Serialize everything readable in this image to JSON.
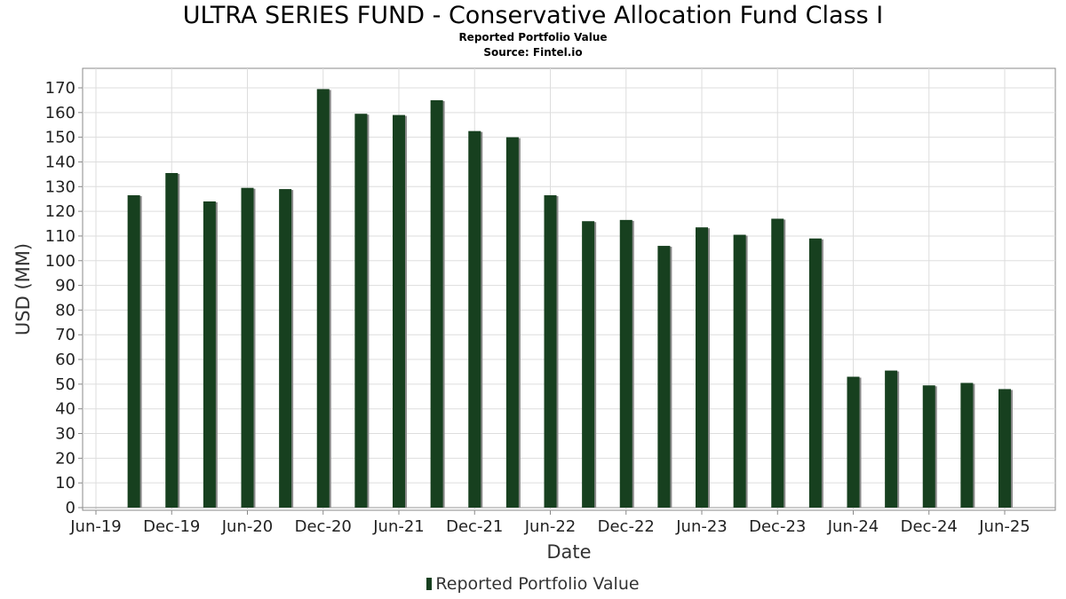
{
  "header": {
    "title": "ULTRA SERIES FUND - Conservative Allocation Fund Class I",
    "subtitle": "Reported Portfolio Value",
    "source": "Source: Fintel.io"
  },
  "legend": {
    "label": "Reported Portfolio Value"
  },
  "colors": {
    "bar": "#17401f",
    "bar_shadow": "#8a8a8a",
    "grid": "#dddddd",
    "plot_border": "#888888"
  },
  "chart_data": {
    "type": "bar",
    "title": "ULTRA SERIES FUND - Conservative Allocation Fund Class I",
    "subtitle": "Reported Portfolio Value",
    "xlabel": "Date",
    "ylabel": "USD (MM)",
    "ylim": [
      0,
      175
    ],
    "yticks": [
      0,
      10,
      20,
      30,
      40,
      50,
      60,
      70,
      80,
      90,
      100,
      110,
      120,
      130,
      140,
      150,
      160,
      170
    ],
    "xticks": [
      "Jun-19",
      "Dec-19",
      "Jun-20",
      "Dec-20",
      "Jun-21",
      "Dec-21",
      "Jun-22",
      "Dec-22",
      "Jun-23",
      "Dec-23",
      "Jun-24",
      "Dec-24",
      "Jun-25"
    ],
    "grid": true,
    "legend_position": "bottom",
    "series": [
      {
        "name": "Reported Portfolio Value",
        "x": [
          "2019-09",
          "2019-12",
          "2020-03",
          "2020-06",
          "2020-09",
          "2020-12",
          "2021-03",
          "2021-06",
          "2021-09",
          "2021-12",
          "2022-03",
          "2022-06",
          "2022-09",
          "2022-12",
          "2023-03",
          "2023-06",
          "2023-09",
          "2023-12",
          "2024-03",
          "2024-06",
          "2024-09",
          "2024-12",
          "2025-03",
          "2025-06"
        ],
        "values": [
          126.5,
          135.5,
          124,
          129.5,
          129,
          169.5,
          159.5,
          159,
          165,
          152.5,
          150,
          126.5,
          116,
          116.5,
          106,
          113.5,
          110.5,
          117,
          109,
          53,
          55.5,
          49.5,
          50.5,
          48
        ]
      }
    ]
  }
}
